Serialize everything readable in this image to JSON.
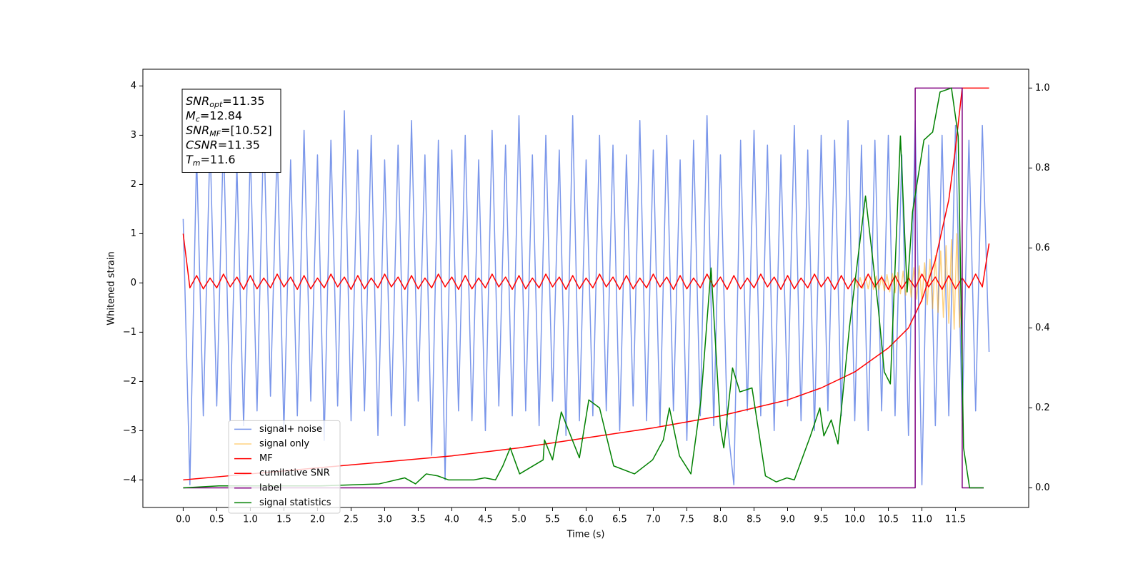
{
  "chart_data": {
    "type": "line",
    "xlabel": "Time (s)",
    "ylabel": "Whitened strain",
    "xlim": [
      -0.6,
      12.59
    ],
    "ylim": [
      -4.56,
      4.34
    ],
    "y2lim": [
      -0.049,
      1.047
    ],
    "xticks": [
      {
        "value": 0,
        "label": "0.0"
      },
      0.5,
      {
        "value": 1,
        "label": "1.0"
      },
      1.5,
      {
        "value": 2,
        "label": "2.0"
      },
      2.5,
      {
        "value": 3,
        "label": "3.0"
      },
      3.5,
      {
        "value": 4,
        "label": "4.0"
      },
      4.5,
      {
        "value": 5,
        "label": "5.0"
      },
      5.5,
      {
        "value": 6,
        "label": "6.0"
      },
      6.5,
      {
        "value": 7,
        "label": "7.0"
      },
      7.5,
      {
        "value": 8,
        "label": "8.0"
      },
      8.5,
      {
        "value": 9,
        "label": "9.0"
      },
      9.5,
      {
        "value": 10,
        "label": "10.0"
      },
      10.5,
      {
        "value": 11,
        "label": "11.0"
      },
      11.5
    ],
    "yticks": [
      {
        "value": -4,
        "label": "−4"
      },
      {
        "value": -3,
        "label": "−3"
      },
      {
        "value": -2,
        "label": "−2"
      },
      {
        "value": -1,
        "label": "−1"
      },
      0,
      1,
      2,
      3,
      4
    ],
    "y2ticks": [
      {
        "value": 0,
        "label": "0.0"
      },
      0.2,
      0.4,
      0.6,
      0.8,
      {
        "value": 1,
        "label": "1.0"
      }
    ],
    "grid": false,
    "legend": "lower left",
    "annotation": [
      {
        "symbol": "SNR",
        "subscript": "opt",
        "text": "=11.35"
      },
      {
        "symbol": "M",
        "subscript": "c",
        "text": "=12.84"
      },
      {
        "symbol": "SNR",
        "subscript": "MF",
        "text": "=[10.52]"
      },
      {
        "symbol": "CSNR",
        "text": "=11.35"
      },
      {
        "symbol": "T",
        "subscript": "m",
        "text": "=11.6"
      }
    ],
    "x": [
      0,
      0.1,
      0.2,
      0.3,
      0.4,
      0.5,
      0.6,
      0.7,
      0.8,
      0.9,
      1.0,
      1.1,
      1.2,
      1.3,
      1.4,
      1.5,
      1.6,
      1.7,
      1.8,
      1.9,
      2.0,
      2.1,
      2.2,
      2.3,
      2.4,
      2.5,
      2.6,
      2.7,
      2.8,
      2.9,
      3.0,
      3.1,
      3.2,
      3.3,
      3.4,
      3.5,
      3.6,
      3.7,
      3.8,
      3.9,
      4.0,
      4.1,
      4.2,
      4.3,
      4.4,
      4.5,
      4.6,
      4.7,
      4.8,
      4.9,
      5.0,
      5.1,
      5.2,
      5.3,
      5.4,
      5.5,
      5.6,
      5.7,
      5.8,
      5.9,
      6.0,
      6.1,
      6.2,
      6.3,
      6.4,
      6.5,
      6.6,
      6.7,
      6.8,
      6.9,
      7.0,
      7.1,
      7.2,
      7.3,
      7.4,
      7.5,
      7.6,
      7.7,
      7.8,
      7.9,
      8.0,
      8.1,
      8.2,
      8.3,
      8.4,
      8.5,
      8.6,
      8.7,
      8.8,
      8.9,
      9.0,
      9.1,
      9.2,
      9.3,
      9.4,
      9.5,
      9.6,
      9.7,
      9.8,
      9.9,
      10.0,
      10.1,
      10.2,
      10.3,
      10.4,
      10.5,
      10.6,
      10.7,
      10.8,
      10.9,
      11.0,
      11.1,
      11.2,
      11.3,
      11.4,
      11.5,
      11.6,
      11.7,
      11.8,
      11.9,
      12.0
    ],
    "series": [
      {
        "name": "signal+ noise",
        "color": "#4169e1",
        "alpha": 0.7,
        "values": [
          1.3,
          -4.1,
          2.6,
          -2.7,
          2.9,
          -2.5,
          3.0,
          -2.8,
          2.4,
          -2.9,
          2.7,
          -2.6,
          3.2,
          -2.3,
          2.8,
          -3.0,
          2.5,
          -2.7,
          3.1,
          -2.4,
          2.6,
          -3.2,
          2.9,
          -2.5,
          3.5,
          -2.8,
          2.7,
          -2.6,
          3.0,
          -3.1,
          2.5,
          -2.7,
          2.8,
          -2.9,
          3.3,
          -2.4,
          2.6,
          -3.5,
          2.9,
          -4.0,
          2.7,
          -2.6,
          3.0,
          -2.8,
          2.5,
          -3.0,
          3.1,
          -2.5,
          2.8,
          -2.7,
          3.4,
          -2.6,
          2.6,
          -2.9,
          3.0,
          -2.4,
          2.7,
          -3.1,
          3.4,
          -2.8,
          2.5,
          -2.7,
          3.0,
          -2.6,
          2.8,
          -3.0,
          2.6,
          -2.5,
          3.3,
          -2.8,
          2.7,
          -2.9,
          3.0,
          -2.6,
          2.5,
          -3.2,
          2.9,
          -2.7,
          3.4,
          -2.9,
          2.6,
          -2.8,
          -4.1,
          2.9,
          -2.6,
          3.1,
          -2.7,
          2.8,
          -3.0,
          2.6,
          -2.5,
          3.2,
          -2.8,
          2.7,
          -3.0,
          3.0,
          -2.6,
          2.9,
          -2.7,
          3.3,
          -2.8,
          2.8,
          -3.0,
          2.9,
          -2.6,
          3.0,
          -2.7,
          2.6,
          -3.1,
          3.3,
          -4.1,
          2.8,
          -2.9,
          3.0,
          -2.7,
          3.2,
          -2.8,
          2.9,
          -2.6,
          3.2,
          -1.4
        ]
      },
      {
        "name": "signal only",
        "color": "#ffa500",
        "alpha": 0.5,
        "x": [
          10.0,
          10.04,
          10.08,
          10.12,
          10.16,
          10.2,
          10.24,
          10.28,
          10.32,
          10.36,
          10.4,
          10.44,
          10.48,
          10.52,
          10.56,
          10.6,
          10.64,
          10.68,
          10.72,
          10.76,
          10.8,
          10.84,
          10.88,
          10.92,
          10.96,
          11.0,
          11.04,
          11.08,
          11.12,
          11.16,
          11.2,
          11.24,
          11.28,
          11.32,
          11.36,
          11.4,
          11.44,
          11.48,
          11.52,
          11.56,
          11.6
        ],
        "values": [
          0.1,
          -0.1,
          0.11,
          -0.11,
          0.12,
          -0.12,
          0.13,
          -0.13,
          0.14,
          -0.14,
          0.15,
          -0.16,
          0.17,
          -0.18,
          0.19,
          -0.2,
          0.21,
          -0.22,
          0.24,
          -0.25,
          0.27,
          -0.29,
          0.31,
          -0.33,
          0.35,
          -0.38,
          0.41,
          -0.44,
          0.48,
          -0.52,
          0.56,
          -0.6,
          0.65,
          -0.7,
          0.76,
          -0.82,
          0.88,
          -0.94,
          1.0,
          -0.9,
          0.0
        ]
      },
      {
        "name": "MF",
        "color": "#ff0000",
        "alpha": 1,
        "values": [
          1.0,
          -0.1,
          0.15,
          -0.12,
          0.1,
          -0.1,
          0.18,
          -0.08,
          0.12,
          -0.13,
          0.15,
          -0.12,
          0.1,
          -0.1,
          0.18,
          -0.08,
          0.12,
          -0.13,
          0.15,
          -0.12,
          0.1,
          -0.1,
          0.18,
          -0.08,
          0.12,
          -0.13,
          0.15,
          -0.12,
          0.1,
          -0.1,
          0.18,
          -0.08,
          0.12,
          -0.13,
          0.15,
          -0.12,
          0.1,
          -0.1,
          0.18,
          -0.08,
          0.12,
          -0.13,
          0.15,
          -0.12,
          0.1,
          -0.1,
          0.18,
          -0.08,
          0.12,
          -0.13,
          0.15,
          -0.12,
          0.1,
          -0.1,
          0.18,
          -0.08,
          0.12,
          -0.13,
          0.15,
          -0.12,
          0.1,
          -0.1,
          0.18,
          -0.08,
          0.12,
          -0.13,
          0.15,
          -0.12,
          0.1,
          -0.1,
          0.18,
          -0.08,
          0.12,
          -0.13,
          0.15,
          -0.12,
          0.1,
          -0.1,
          0.18,
          -0.08,
          0.12,
          -0.13,
          0.15,
          -0.12,
          0.1,
          -0.1,
          0.18,
          -0.08,
          0.12,
          -0.13,
          0.15,
          -0.12,
          0.1,
          -0.1,
          0.18,
          -0.08,
          0.12,
          -0.13,
          0.15,
          -0.12,
          0.1,
          -0.1,
          0.18,
          -0.08,
          0.12,
          -0.13,
          0.15,
          -0.12,
          0.1,
          -0.1,
          0.18,
          -0.08,
          0.12,
          -0.13,
          0.15,
          -0.12,
          0.1,
          -0.1,
          0.18,
          -0.08,
          0.8
        ]
      },
      {
        "name": "cumilative SNR",
        "color": "#ff0000",
        "alpha": 1,
        "axis": "y2",
        "x": [
          0,
          1,
          2,
          3,
          4,
          5,
          6,
          7,
          8,
          8.5,
          9,
          9.5,
          10,
          10.5,
          10.8,
          11,
          11.2,
          11.4,
          11.5,
          11.6,
          12.0
        ],
        "values": [
          0.02,
          0.035,
          0.05,
          0.065,
          0.08,
          0.1,
          0.125,
          0.15,
          0.18,
          0.2,
          0.22,
          0.25,
          0.29,
          0.35,
          0.4,
          0.47,
          0.57,
          0.72,
          0.85,
          1.0,
          1.0
        ]
      },
      {
        "name": "label",
        "color": "#800080",
        "alpha": 1,
        "axis": "y2",
        "x": [
          0,
          10.9,
          10.9,
          11.6,
          11.6,
          11.92
        ],
        "values": [
          0,
          0,
          1,
          1,
          0,
          0
        ]
      },
      {
        "name": "signal statistics",
        "color": "#008000",
        "alpha": 1,
        "axis": "y2",
        "x": [
          0,
          0.53,
          2.05,
          2.92,
          3.3,
          3.46,
          3.62,
          3.79,
          3.95,
          4.33,
          4.49,
          4.65,
          4.76,
          4.87,
          5.01,
          5.36,
          5.38,
          5.5,
          5.63,
          5.9,
          6.04,
          6.2,
          6.41,
          6.72,
          6.99,
          7.15,
          7.24,
          7.39,
          7.56,
          7.71,
          7.86,
          8.0,
          8.05,
          8.18,
          8.29,
          8.47,
          8.67,
          8.83,
          8.99,
          9.1,
          9.34,
          9.48,
          9.54,
          9.65,
          9.75,
          9.92,
          10.16,
          10.35,
          10.44,
          10.53,
          10.68,
          10.78,
          10.86,
          11.03,
          11.16,
          11.27,
          11.44,
          11.54,
          11.62,
          11.71,
          11.92
        ],
        "values": [
          0,
          0.005,
          0.005,
          0.01,
          0.025,
          0.01,
          0.035,
          0.03,
          0.02,
          0.02,
          0.025,
          0.02,
          0.055,
          0.1,
          0.035,
          0.07,
          0.12,
          0.07,
          0.19,
          0.075,
          0.22,
          0.2,
          0.055,
          0.035,
          0.07,
          0.12,
          0.2,
          0.08,
          0.035,
          0.22,
          0.55,
          0.15,
          0.1,
          0.3,
          0.24,
          0.25,
          0.03,
          0.015,
          0.025,
          0.02,
          0.13,
          0.2,
          0.13,
          0.17,
          0.11,
          0.4,
          0.73,
          0.45,
          0.29,
          0.26,
          0.88,
          0.49,
          0.69,
          0.87,
          0.89,
          0.99,
          1.0,
          0.88,
          0.1,
          0.0,
          0.0
        ]
      }
    ]
  }
}
